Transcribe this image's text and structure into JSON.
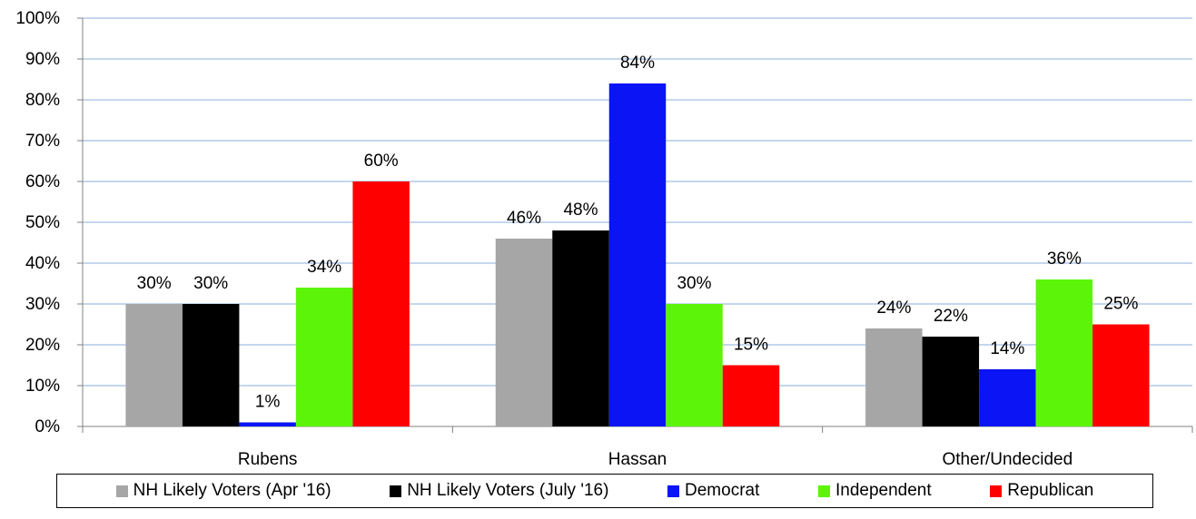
{
  "chart_data": {
    "type": "bar",
    "categories": [
      "Rubens",
      "Hassan",
      "Other/Undecided"
    ],
    "series": [
      {
        "name": "NH Likely Voters (Apr '16)",
        "color": "#a6a6a6",
        "values": [
          30,
          46,
          24
        ]
      },
      {
        "name": "NH Likely Voters (July '16)",
        "color": "#000000",
        "values": [
          30,
          48,
          22
        ]
      },
      {
        "name": "Democrat",
        "color": "#0a14f5",
        "values": [
          1,
          84,
          14
        ]
      },
      {
        "name": "Independent",
        "color": "#5cf50a",
        "values": [
          34,
          30,
          36
        ]
      },
      {
        "name": "Republican",
        "color": "#ff0000",
        "values": [
          60,
          15,
          25
        ]
      }
    ],
    "value_labels": [
      [
        "30%",
        "46%",
        "24%"
      ],
      [
        "30%",
        "48%",
        "22%"
      ],
      [
        "1%",
        "84%",
        "14%"
      ],
      [
        "34%",
        "30%",
        "36%"
      ],
      [
        "60%",
        "15%",
        "25%"
      ]
    ],
    "y_ticks": [
      "0%",
      "10%",
      "20%",
      "30%",
      "40%",
      "50%",
      "60%",
      "70%",
      "80%",
      "90%",
      "100%"
    ],
    "ylim": [
      0,
      100
    ],
    "grid": true,
    "legend_position": "bottom",
    "title": "",
    "xlabel": "",
    "ylabel": ""
  }
}
